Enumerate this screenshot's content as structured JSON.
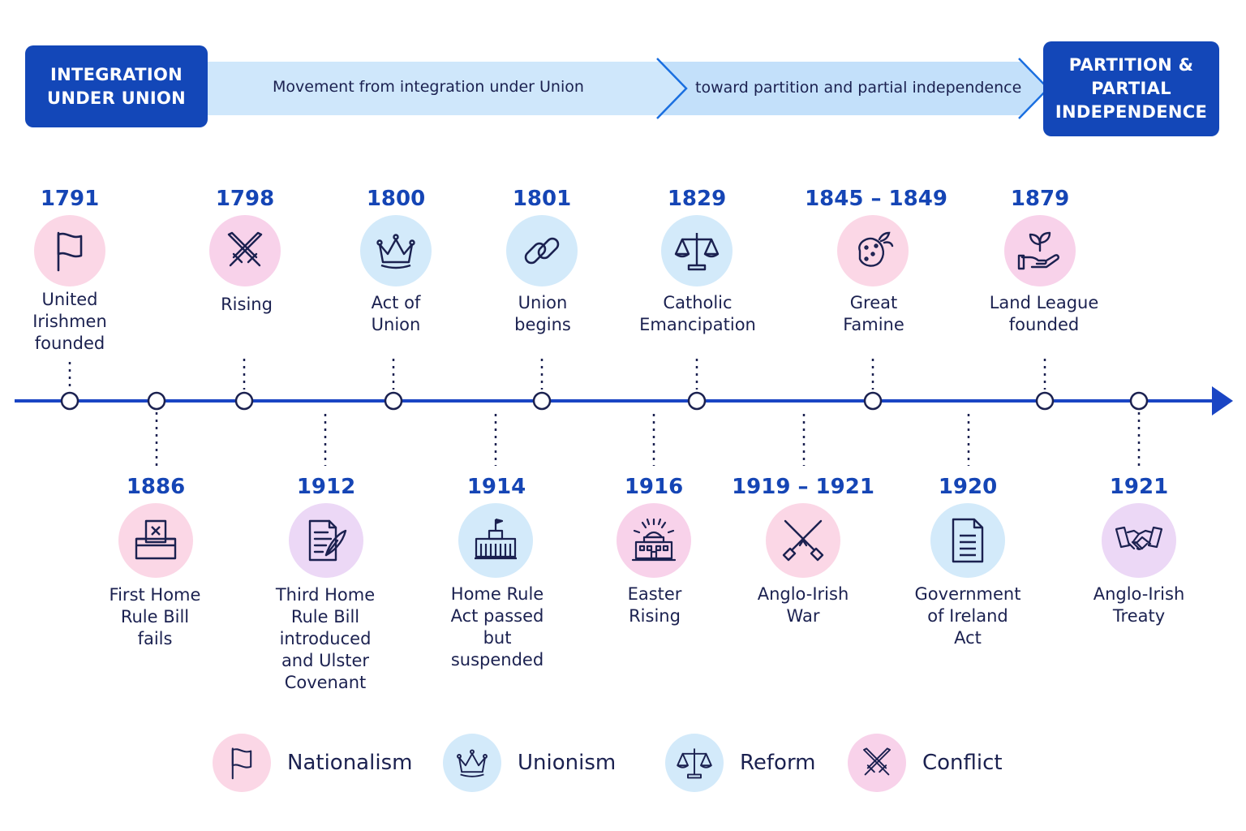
{
  "header": {
    "left_box": "INTEGRATION\nUNDER UNION",
    "right_box": "PARTITION &\nPARTIAL\nINDEPENDENCE",
    "arrow_text_1": "Movement from integration under Union",
    "arrow_text_2": "toward partition and partial independence"
  },
  "colors": {
    "primary": "#1347b8",
    "year_text": "#1545b5",
    "arrow_fill": "#cfe7fb",
    "timeline": "#1a45c4"
  },
  "events_top": [
    {
      "year": "1791",
      "label": "United\nIrishmen\nfounded",
      "icon": "flag-icon",
      "theme": "pink"
    },
    {
      "year": "1798",
      "label": "Rising",
      "icon": "crossed-swords-icon",
      "theme": "rose"
    },
    {
      "year": "1800",
      "label": "Act of\nUnion",
      "icon": "crown-icon",
      "theme": "blue"
    },
    {
      "year": "1801",
      "label": "Union\nbegins",
      "icon": "chain-link-icon",
      "theme": "blue"
    },
    {
      "year": "1829",
      "label": "Catholic\nEmancipation",
      "icon": "scales-icon",
      "theme": "blue"
    },
    {
      "year": "1845 – 1849",
      "label": "Great\nFamine",
      "icon": "potato-icon",
      "theme": "pink"
    },
    {
      "year": "1879",
      "label": "Land League\nfounded",
      "icon": "hand-sprout-icon",
      "theme": "rose"
    }
  ],
  "events_bottom": [
    {
      "year": "1886",
      "label": "First Home\nRule Bill\nfails",
      "icon": "ballot-box-icon",
      "theme": "pink"
    },
    {
      "year": "1912",
      "label": "Third Home\nRule Bill\nintroduced\nand Ulster\nCovenant",
      "icon": "document-quill-icon",
      "theme": "purple"
    },
    {
      "year": "1914",
      "label": "Home Rule\nAct passed\nbut\nsuspended",
      "icon": "parliament-icon",
      "theme": "blue"
    },
    {
      "year": "1916",
      "label": "Easter\nRising",
      "icon": "rising-building-icon",
      "theme": "rose"
    },
    {
      "year": "1919 – 1921",
      "label": "Anglo-Irish\nWar",
      "icon": "crossed-rifles-icon",
      "theme": "pink"
    },
    {
      "year": "1920",
      "label": "Government\nof Ireland\nAct",
      "icon": "document-icon",
      "theme": "blue"
    },
    {
      "year": "1921",
      "label": "Anglo-Irish\nTreaty",
      "icon": "handshake-icon",
      "theme": "purple"
    }
  ],
  "legend": [
    {
      "label": "Nationalism",
      "icon": "flag-icon",
      "theme": "pink"
    },
    {
      "label": "Unionism",
      "icon": "crown-icon",
      "theme": "blue"
    },
    {
      "label": "Reform",
      "icon": "scales-icon",
      "theme": "blue"
    },
    {
      "label": "Conflict",
      "icon": "crossed-swords-icon",
      "theme": "rose"
    }
  ]
}
